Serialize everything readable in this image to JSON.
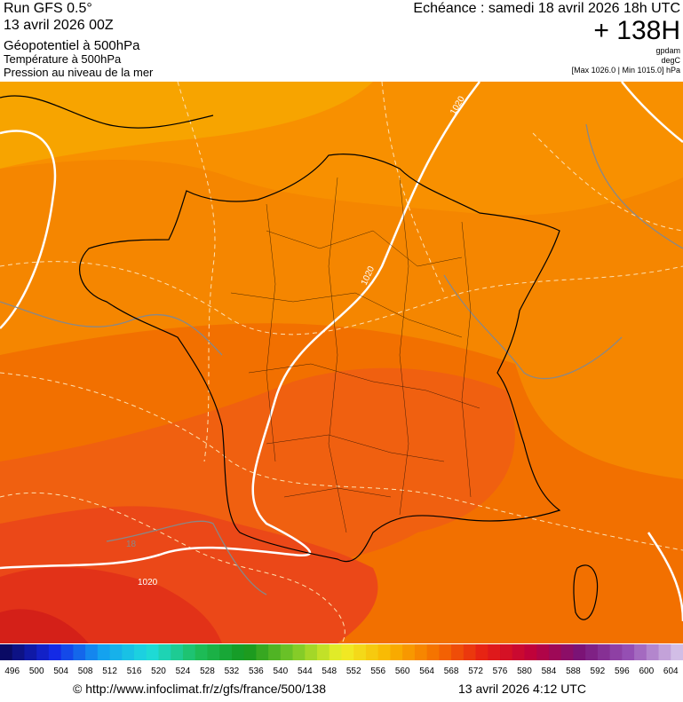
{
  "header": {
    "run": "Run GFS 0.5°",
    "date": "13 avril 2026 00Z",
    "field": "Géopotentiel à 500hPa",
    "temperature": "Température à 500hPa",
    "pressure": "Pression au niveau de la mer",
    "forecast": "Echéance : samedi 18 avril 2026 18h UTC",
    "lead": "+ 138H",
    "unit_geo": "gpdam",
    "unit_temp": "degC",
    "range": "[Max 1026.0 | Min 1015.0] hPa"
  },
  "map": {
    "isobar_labels": [
      "1020",
      "1020",
      "1020"
    ],
    "isotherm_label": "18"
  },
  "colorbar": {
    "labels": [
      496,
      500,
      504,
      508,
      512,
      516,
      520,
      524,
      528,
      532,
      536,
      540,
      544,
      548,
      552,
      556,
      560,
      564,
      568,
      572,
      576,
      580,
      584,
      588,
      592,
      596,
      600,
      604
    ]
  },
  "footer": {
    "url": "© http://www.infoclimat.fr/z/gfs/france/500/138",
    "stamp": "13 avril 2026  4:12 UTC"
  }
}
